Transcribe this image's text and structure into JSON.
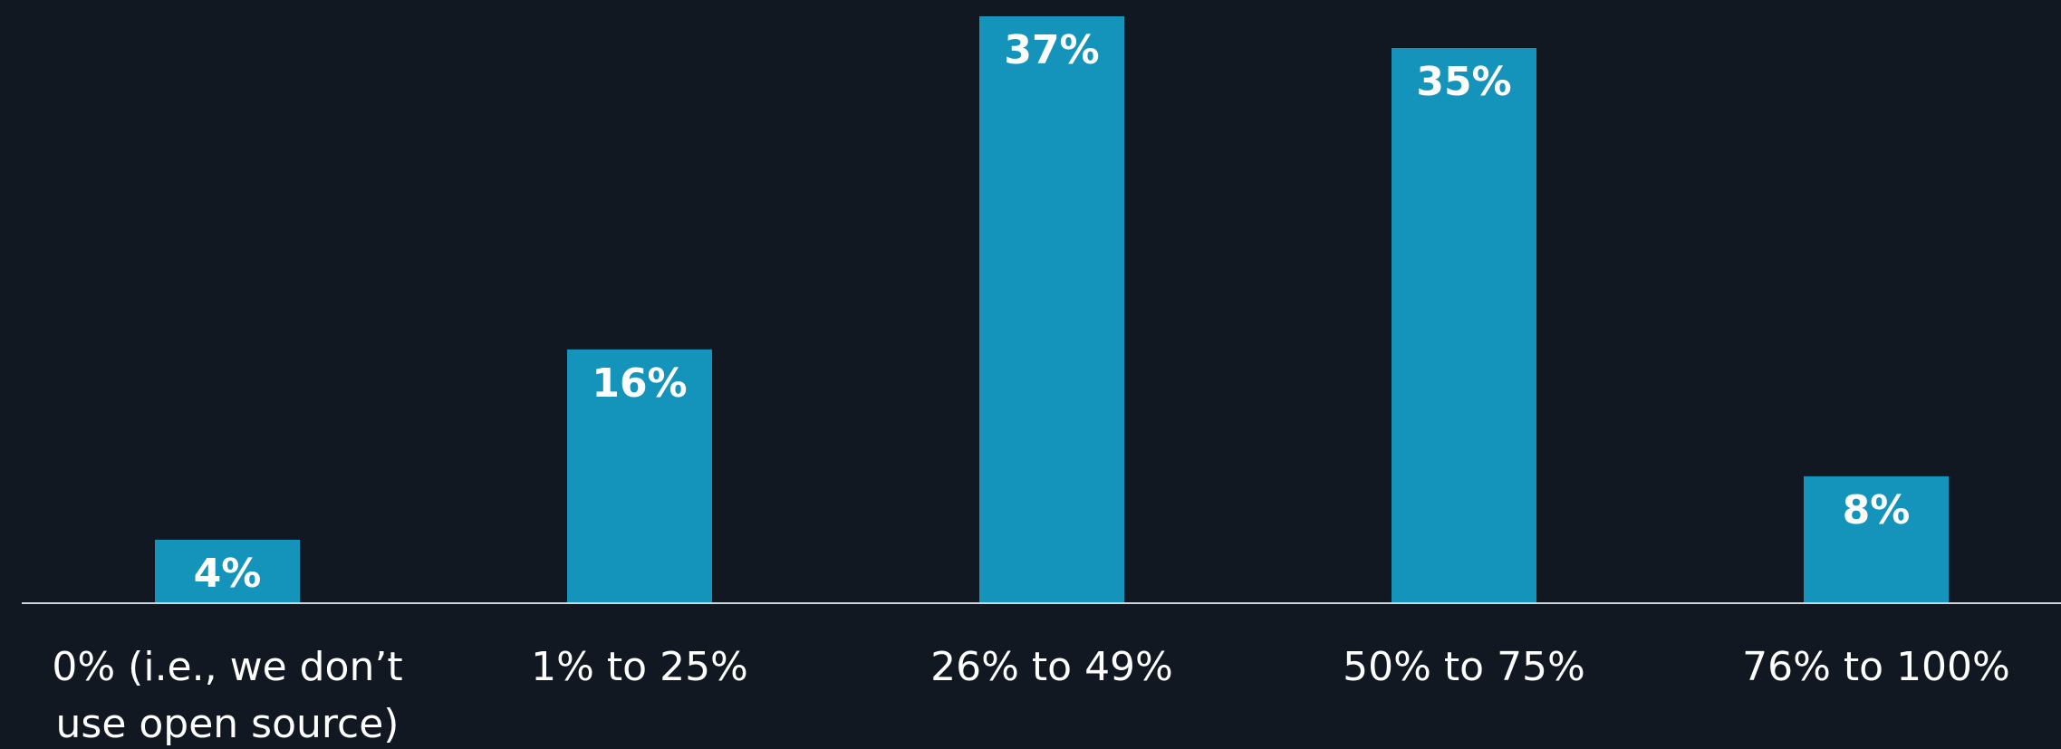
{
  "chart_data": {
    "type": "bar",
    "categories": [
      [
        "0% (i.e., we don’t",
        "use open source)"
      ],
      [
        "1% to 25%"
      ],
      [
        "26% to 49%"
      ],
      [
        "50% to 75%"
      ],
      [
        "76% to 100%"
      ]
    ],
    "values": [
      4,
      16,
      37,
      35,
      8
    ],
    "data_labels": [
      "4%",
      "16%",
      "37%",
      "35%",
      "8%"
    ],
    "title": "",
    "xlabel": "",
    "ylabel": "",
    "ylim": [
      0,
      37
    ],
    "grid": false,
    "legend": "none",
    "colors": {
      "background": "#111822",
      "bar": "#1594bb",
      "axis": "#d0d4d8",
      "text": "#ffffff"
    }
  }
}
